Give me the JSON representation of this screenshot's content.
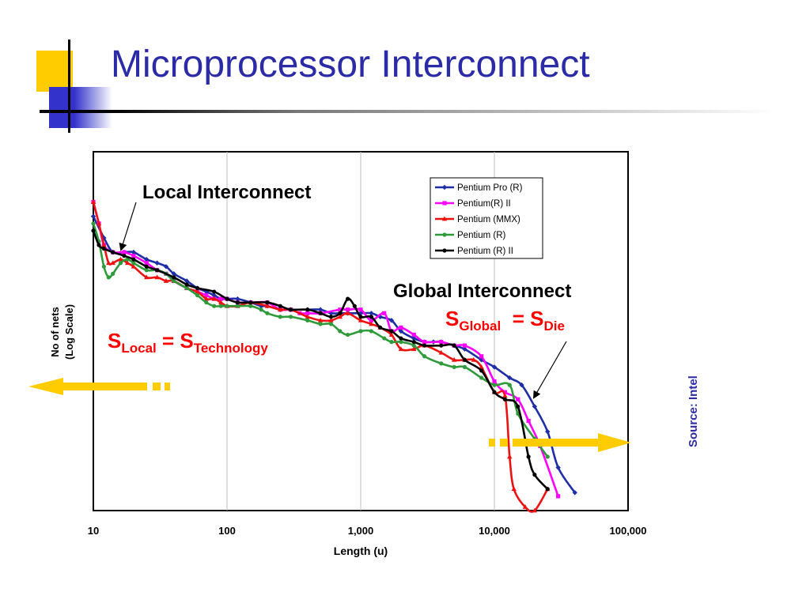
{
  "slide": {
    "title": "Microprocessor Interconnect",
    "source": "Source: Intel",
    "colors": {
      "title": "#2b2ba8",
      "yellow": "#ffcc00",
      "blue": "#3333cc",
      "red": "#ff0000"
    }
  },
  "annotations": {
    "local_title": "Local Interconnect",
    "global_title": "Global Interconnect",
    "local_eq": {
      "s": "S",
      "sub1": "Local",
      "eq": " = S",
      "sub2": "Technology"
    },
    "global_eq": {
      "s": "S",
      "sub1": "Global",
      "eq": "  = S",
      "sub2": "Die"
    }
  },
  "chart_data": {
    "type": "line",
    "title": "",
    "xlabel": "Length (u)",
    "ylabel_lines": [
      "No of nets",
      "(Log Scale)"
    ],
    "xscale": "log",
    "xlim": [
      10,
      100000
    ],
    "ylim": [
      0,
      100
    ],
    "y_units": "relative log count (no tick labels shown)",
    "x_ticks": [
      10,
      100,
      1000,
      10000,
      100000
    ],
    "x_tick_labels": [
      "10",
      "100",
      "1,000",
      "10,000",
      "100,000"
    ],
    "grid": "vertical",
    "legend_position": "top-right",
    "series": [
      {
        "name": "Pentium Pro (R)",
        "color": "#1f2ea6",
        "marker": "diamond",
        "points": [
          [
            10,
            82
          ],
          [
            12,
            76
          ],
          [
            14,
            72
          ],
          [
            17,
            72
          ],
          [
            20,
            72
          ],
          [
            25,
            70
          ],
          [
            30,
            69
          ],
          [
            35,
            68
          ],
          [
            40,
            66
          ],
          [
            50,
            64
          ],
          [
            60,
            62
          ],
          [
            70,
            61
          ],
          [
            80,
            60
          ],
          [
            90,
            59
          ],
          [
            100,
            59
          ],
          [
            120,
            59
          ],
          [
            150,
            58
          ],
          [
            180,
            57
          ],
          [
            200,
            57
          ],
          [
            250,
            56
          ],
          [
            300,
            56
          ],
          [
            400,
            56
          ],
          [
            500,
            56
          ],
          [
            600,
            55
          ],
          [
            700,
            55
          ],
          [
            800,
            55
          ],
          [
            1000,
            55
          ],
          [
            1200,
            55
          ],
          [
            1400,
            54
          ],
          [
            1700,
            53
          ],
          [
            2000,
            50
          ],
          [
            2500,
            48
          ],
          [
            3000,
            47
          ],
          [
            3500,
            47
          ],
          [
            4000,
            47
          ],
          [
            5000,
            46
          ],
          [
            6000,
            45
          ],
          [
            8000,
            42
          ],
          [
            10000,
            40
          ],
          [
            13000,
            37
          ],
          [
            16000,
            35
          ],
          [
            20000,
            29
          ],
          [
            25000,
            22
          ],
          [
            30000,
            12
          ],
          [
            40000,
            5
          ]
        ]
      },
      {
        "name": "Pentium(R) II",
        "color": "#ff00ff",
        "marker": "square",
        "points": [
          [
            10,
            86
          ],
          [
            11,
            80
          ],
          [
            12,
            74
          ],
          [
            14,
            72
          ],
          [
            17,
            72
          ],
          [
            20,
            71
          ],
          [
            25,
            69
          ],
          [
            30,
            67
          ],
          [
            35,
            66
          ],
          [
            40,
            64
          ],
          [
            50,
            62
          ],
          [
            60,
            61
          ],
          [
            70,
            60
          ],
          [
            80,
            59
          ],
          [
            90,
            59
          ],
          [
            100,
            59
          ],
          [
            120,
            58
          ],
          [
            150,
            58
          ],
          [
            200,
            58
          ],
          [
            250,
            56
          ],
          [
            300,
            56
          ],
          [
            350,
            55
          ],
          [
            400,
            55
          ],
          [
            500,
            55
          ],
          [
            700,
            56
          ],
          [
            800,
            56
          ],
          [
            1000,
            56
          ],
          [
            1200,
            53
          ],
          [
            1500,
            55
          ],
          [
            1700,
            50
          ],
          [
            2000,
            51
          ],
          [
            2500,
            49
          ],
          [
            3000,
            47
          ],
          [
            4000,
            47
          ],
          [
            5000,
            46
          ],
          [
            6000,
            46
          ],
          [
            8000,
            43
          ],
          [
            10000,
            36
          ],
          [
            12000,
            33
          ],
          [
            15000,
            31
          ],
          [
            18000,
            25
          ],
          [
            22000,
            18
          ],
          [
            30000,
            4
          ]
        ]
      },
      {
        "name": "Pentium (MMX)",
        "color": "#ee1111",
        "marker": "triangle",
        "points": [
          [
            10,
            86
          ],
          [
            11,
            80
          ],
          [
            12,
            74
          ],
          [
            13,
            69
          ],
          [
            14,
            69
          ],
          [
            16,
            70
          ],
          [
            18,
            69
          ],
          [
            20,
            68
          ],
          [
            25,
            65
          ],
          [
            30,
            65
          ],
          [
            35,
            64
          ],
          [
            40,
            64
          ],
          [
            50,
            62
          ],
          [
            60,
            61
          ],
          [
            70,
            59
          ],
          [
            80,
            59
          ],
          [
            90,
            58
          ],
          [
            100,
            57
          ],
          [
            120,
            57
          ],
          [
            150,
            58
          ],
          [
            200,
            57
          ],
          [
            250,
            56
          ],
          [
            300,
            56
          ],
          [
            400,
            54
          ],
          [
            500,
            53
          ],
          [
            600,
            53
          ],
          [
            700,
            54
          ],
          [
            800,
            55
          ],
          [
            1000,
            53
          ],
          [
            1200,
            52
          ],
          [
            1400,
            51
          ],
          [
            1700,
            49
          ],
          [
            2000,
            45
          ],
          [
            2500,
            45
          ],
          [
            3000,
            46
          ],
          [
            4000,
            44
          ],
          [
            5000,
            42
          ],
          [
            6000,
            42
          ],
          [
            7000,
            42
          ],
          [
            8000,
            40
          ],
          [
            10000,
            33
          ],
          [
            12000,
            32
          ],
          [
            13000,
            15
          ],
          [
            14000,
            6
          ],
          [
            17000,
            1
          ],
          [
            20000,
            0
          ],
          [
            25000,
            6
          ]
        ]
      },
      {
        "name": "Pentium (R)",
        "color": "#2e9a3a",
        "marker": "circle",
        "points": [
          [
            10,
            80
          ],
          [
            11,
            75
          ],
          [
            12,
            68
          ],
          [
            13,
            65
          ],
          [
            14,
            66
          ],
          [
            16,
            69
          ],
          [
            18,
            70
          ],
          [
            20,
            69
          ],
          [
            25,
            67
          ],
          [
            30,
            67
          ],
          [
            35,
            66
          ],
          [
            40,
            64
          ],
          [
            50,
            62
          ],
          [
            60,
            60
          ],
          [
            70,
            58
          ],
          [
            80,
            57
          ],
          [
            90,
            57
          ],
          [
            100,
            57
          ],
          [
            120,
            57
          ],
          [
            150,
            57
          ],
          [
            180,
            56
          ],
          [
            200,
            55
          ],
          [
            250,
            54
          ],
          [
            300,
            54
          ],
          [
            400,
            53
          ],
          [
            500,
            52
          ],
          [
            600,
            52
          ],
          [
            700,
            50
          ],
          [
            800,
            49
          ],
          [
            1000,
            50
          ],
          [
            1200,
            50
          ],
          [
            1500,
            48
          ],
          [
            1700,
            47
          ],
          [
            2000,
            47
          ],
          [
            2500,
            46
          ],
          [
            3000,
            43
          ],
          [
            4000,
            41
          ],
          [
            5000,
            40
          ],
          [
            6000,
            40
          ],
          [
            8000,
            37
          ],
          [
            10000,
            35
          ],
          [
            13000,
            35
          ],
          [
            15000,
            27
          ],
          [
            20000,
            20
          ],
          [
            25000,
            15
          ]
        ]
      },
      {
        "name": "Pentium (R) II",
        "color": "#000000",
        "marker": "circle",
        "points": [
          [
            10,
            78
          ],
          [
            11,
            74
          ],
          [
            12,
            73
          ],
          [
            14,
            72
          ],
          [
            17,
            71
          ],
          [
            20,
            70
          ],
          [
            25,
            68
          ],
          [
            30,
            67
          ],
          [
            40,
            65
          ],
          [
            50,
            63
          ],
          [
            60,
            62
          ],
          [
            80,
            61
          ],
          [
            100,
            59
          ],
          [
            120,
            58
          ],
          [
            150,
            58
          ],
          [
            200,
            58
          ],
          [
            250,
            57
          ],
          [
            300,
            56
          ],
          [
            400,
            56
          ],
          [
            500,
            55
          ],
          [
            600,
            54
          ],
          [
            700,
            55
          ],
          [
            800,
            59
          ],
          [
            900,
            57
          ],
          [
            1000,
            54
          ],
          [
            1200,
            54
          ],
          [
            1400,
            51
          ],
          [
            1700,
            50
          ],
          [
            2000,
            48
          ],
          [
            2500,
            47
          ],
          [
            3000,
            46
          ],
          [
            4000,
            46
          ],
          [
            5000,
            46
          ],
          [
            6000,
            42
          ],
          [
            8000,
            39
          ],
          [
            10000,
            33
          ],
          [
            12000,
            31
          ],
          [
            15000,
            29
          ],
          [
            18000,
            15
          ],
          [
            20000,
            10
          ],
          [
            25000,
            6
          ]
        ]
      }
    ]
  }
}
